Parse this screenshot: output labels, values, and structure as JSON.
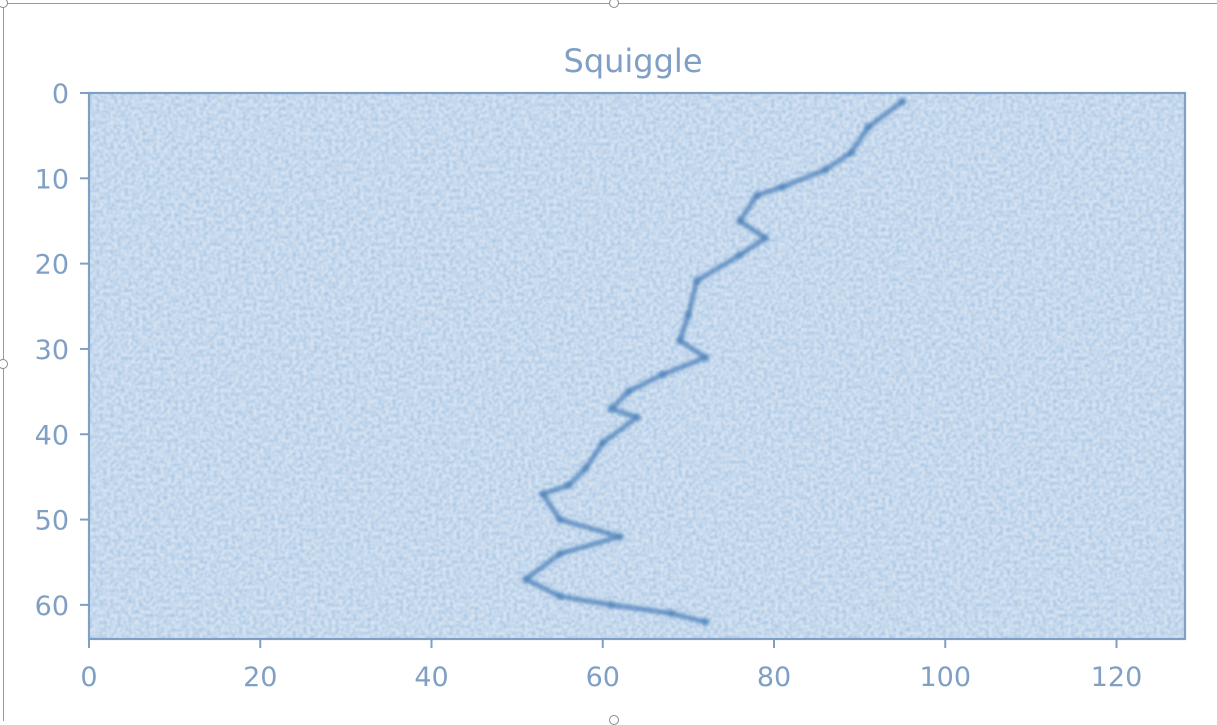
{
  "chart_data": {
    "type": "heatmap",
    "title": "Squiggle",
    "xlabel": "",
    "ylabel": "",
    "xlim": [
      0,
      128
    ],
    "ylim": [
      64,
      0
    ],
    "x_ticks": [
      "0",
      "20",
      "40",
      "60",
      "80",
      "100",
      "120"
    ],
    "y_ticks": [
      "0",
      "10",
      "20",
      "30",
      "40",
      "50",
      "60"
    ],
    "colormap": "Blues",
    "path": [
      {
        "x": 95,
        "y": 1
      },
      {
        "x": 91,
        "y": 4
      },
      {
        "x": 89,
        "y": 7
      },
      {
        "x": 86,
        "y": 9
      },
      {
        "x": 81,
        "y": 11
      },
      {
        "x": 78,
        "y": 12
      },
      {
        "x": 76,
        "y": 15
      },
      {
        "x": 79,
        "y": 17
      },
      {
        "x": 76,
        "y": 19
      },
      {
        "x": 71,
        "y": 22
      },
      {
        "x": 70,
        "y": 26
      },
      {
        "x": 69,
        "y": 29
      },
      {
        "x": 72,
        "y": 31
      },
      {
        "x": 67,
        "y": 33
      },
      {
        "x": 63,
        "y": 35
      },
      {
        "x": 61,
        "y": 37
      },
      {
        "x": 64,
        "y": 38
      },
      {
        "x": 60,
        "y": 41
      },
      {
        "x": 58,
        "y": 44
      },
      {
        "x": 56,
        "y": 46
      },
      {
        "x": 53,
        "y": 47
      },
      {
        "x": 55,
        "y": 50
      },
      {
        "x": 62,
        "y": 52
      },
      {
        "x": 55,
        "y": 54
      },
      {
        "x": 51,
        "y": 57
      },
      {
        "x": 55,
        "y": 59
      },
      {
        "x": 61,
        "y": 60
      },
      {
        "x": 68,
        "y": 61
      },
      {
        "x": 72,
        "y": 62
      }
    ],
    "colors": {
      "background": "#d7e3f1",
      "axis": "#7f9fc4",
      "signal": "#4a7fb8"
    }
  }
}
